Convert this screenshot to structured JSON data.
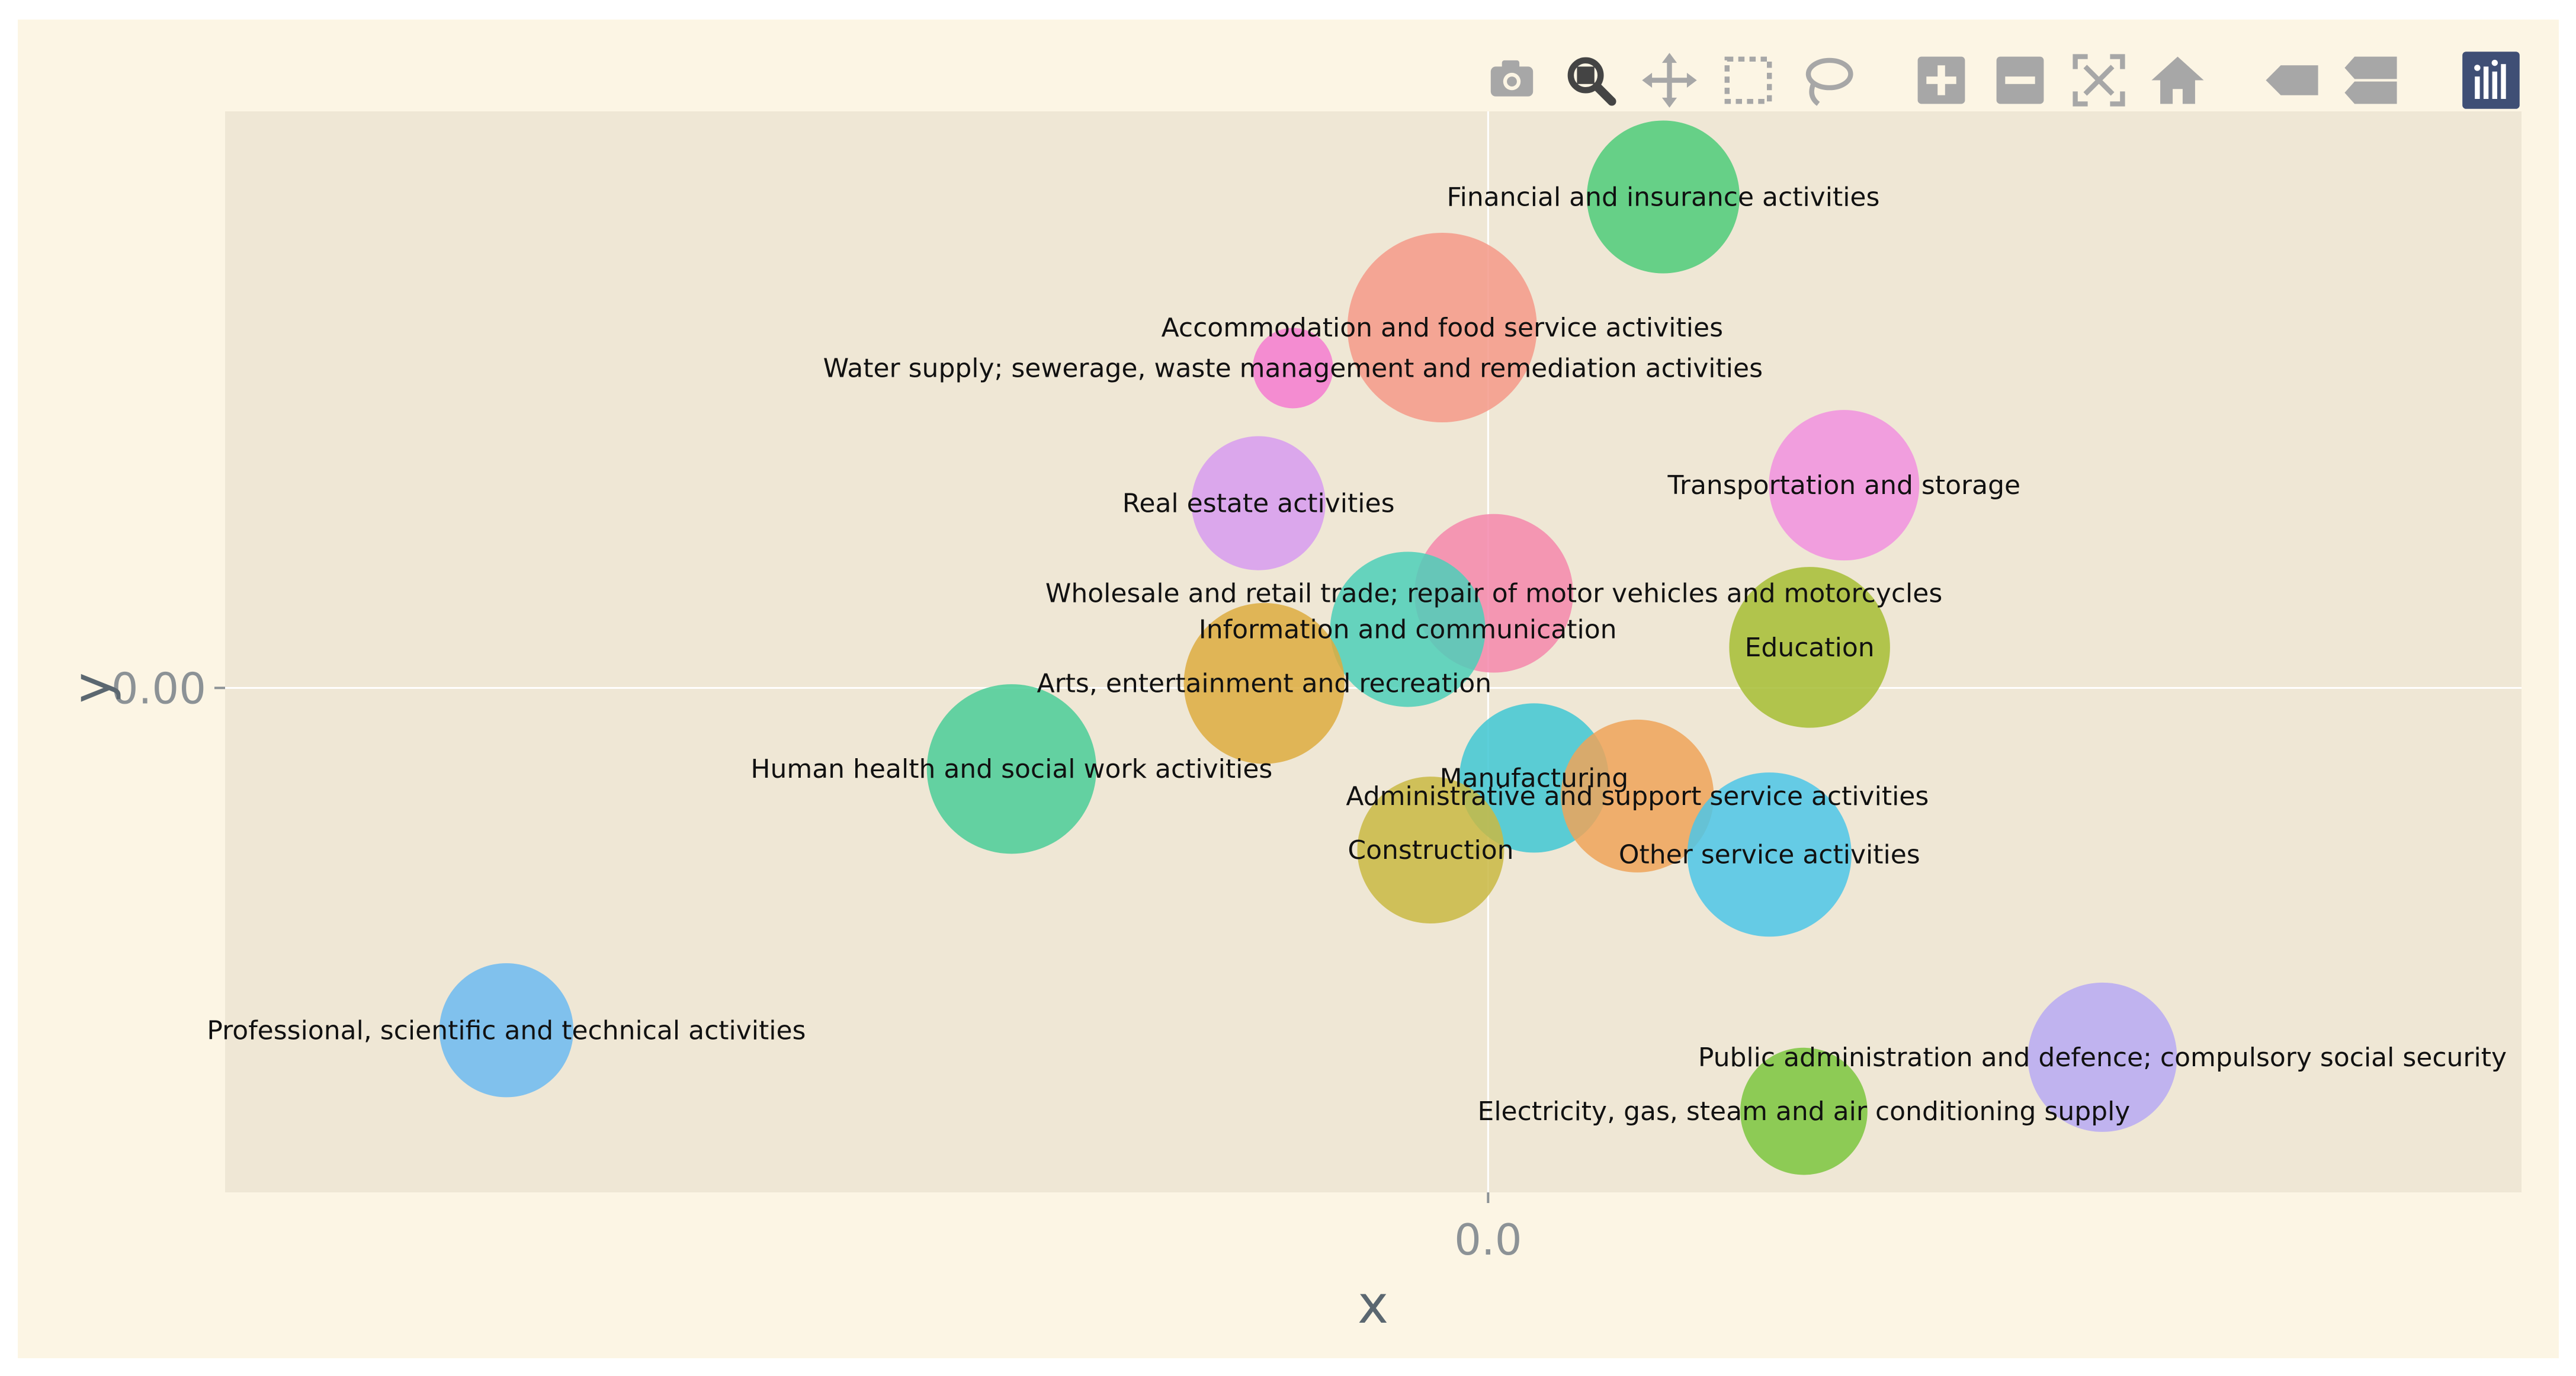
{
  "chart_data": {
    "type": "scatter",
    "mode": "bubble",
    "xlabel": "x",
    "ylabel": "y",
    "x_ticks": [
      "0.0"
    ],
    "y_ticks": [
      "0.00"
    ],
    "xlim": [
      -2.2,
      1.8
    ],
    "ylim": [
      -1.12,
      1.28
    ],
    "grid": "zero-lines only",
    "points": [
      {
        "label": "Financial and insurance activities",
        "x": 0.305,
        "y": 1.09,
        "size": 0.65,
        "color": "#4ecb79"
      },
      {
        "label": "Accommodation and food service activities",
        "x": -0.08,
        "y": 0.8,
        "size": 1.0,
        "color": "#f49988"
      },
      {
        "label": "Water supply; sewerage, waste management and remediation activities",
        "x": -0.34,
        "y": 0.71,
        "size": 0.18,
        "color": "#f47bd0"
      },
      {
        "label": "Transportation and storage",
        "x": 0.62,
        "y": 0.45,
        "size": 0.63,
        "color": "#f191df"
      },
      {
        "label": "Real estate activities",
        "x": -0.4,
        "y": 0.41,
        "size": 0.5,
        "color": "#d79bf0"
      },
      {
        "label": "Wholesale and retail trade; repair of motor vehicles and motorcycles",
        "x": 0.01,
        "y": 0.21,
        "size": 0.7,
        "color": "#f587ac"
      },
      {
        "label": "Information and communication",
        "x": -0.14,
        "y": 0.13,
        "size": 0.67,
        "color": "#4ccfb8"
      },
      {
        "label": "Education",
        "x": 0.56,
        "y": 0.09,
        "size": 0.72,
        "color": "#a6bd34"
      },
      {
        "label": "Arts, entertainment and recreation",
        "x": -0.39,
        "y": 0.01,
        "size": 0.72,
        "color": "#ddab3f"
      },
      {
        "label": "Human health and social work activities",
        "x": -0.83,
        "y": -0.18,
        "size": 0.8,
        "color": "#4acd98"
      },
      {
        "label": "Manufacturing",
        "x": 0.08,
        "y": -0.2,
        "size": 0.62,
        "color": "#3fc7d3"
      },
      {
        "label": "Administrative and support service activities",
        "x": 0.26,
        "y": -0.24,
        "size": 0.65,
        "color": "#efa359"
      },
      {
        "label": "Construction",
        "x": -0.1,
        "y": -0.36,
        "size": 0.6,
        "color": "#c9b843"
      },
      {
        "label": "Other service activities",
        "x": 0.49,
        "y": -0.37,
        "size": 0.75,
        "color": "#4cc5e8"
      },
      {
        "label": "Professional, scientific and technical activities",
        "x": -1.71,
        "y": -0.76,
        "size": 0.5,
        "color": "#6cbaf1"
      },
      {
        "label": "Public administration and defence; compulsory social security",
        "x": 1.07,
        "y": -0.82,
        "size": 0.62,
        "color": "#b7a9f3"
      },
      {
        "label": "Electricity, gas, steam and air conditioning supply",
        "x": 0.55,
        "y": -0.94,
        "size": 0.45,
        "color": "#7bc53e"
      }
    ]
  },
  "colors": {
    "paper_bg": "#fcf5e4",
    "plot_bg": "#efe7d5",
    "zeroline": "#ffffff",
    "modebar_icon": "#a7a7a7",
    "modebar_active": "#444444",
    "logo_bg": "#3f4f75"
  },
  "modebar": {
    "buttons": [
      {
        "name": "camera-icon",
        "title": "Download plot as a png"
      },
      {
        "name": "zoom-icon",
        "title": "Zoom",
        "active": true
      },
      {
        "name": "pan-icon",
        "title": "Pan"
      },
      {
        "name": "box-select-icon",
        "title": "Box Select"
      },
      {
        "name": "lasso-select-icon",
        "title": "Lasso Select"
      },
      {
        "name": "zoom-in-icon",
        "title": "Zoom in"
      },
      {
        "name": "zoom-out-icon",
        "title": "Zoom out"
      },
      {
        "name": "autoscale-icon",
        "title": "Autoscale"
      },
      {
        "name": "reset-axes-icon",
        "title": "Reset axes"
      },
      {
        "name": "spike-lines-icon",
        "title": "Toggle Spike Lines"
      },
      {
        "name": "compare-hover-icon",
        "title": "Compare data on hover"
      },
      {
        "name": "plotly-logo-icon",
        "title": "Produced with Plotly"
      }
    ]
  }
}
